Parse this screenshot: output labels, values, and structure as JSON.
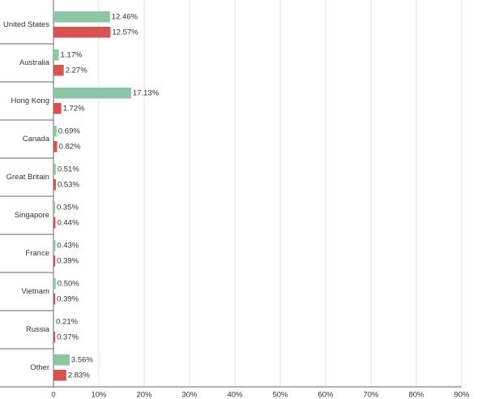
{
  "chart_data": {
    "type": "hbar",
    "categories": [
      "United States",
      "Australia",
      "Hong Kong",
      "Canada",
      "Great Britain",
      "Singapore",
      "France",
      "Vietnam",
      "Russia",
      "Other"
    ],
    "series": [
      {
        "color": "#8dc6a3",
        "values": [
          12.46,
          1.17,
          17.13,
          0.69,
          0.51,
          0.35,
          0.43,
          0.5,
          0.21,
          3.56
        ],
        "value_labels": [
          "12.46%",
          "1.17%",
          "17.13%",
          "0.69%",
          "0.51%",
          "0.35%",
          "0.43%",
          "0.50%",
          "0.21%",
          "3.56%"
        ]
      },
      {
        "color": "#d55452",
        "values": [
          12.57,
          2.27,
          1.72,
          0.82,
          0.53,
          0.44,
          0.39,
          0.39,
          0.37,
          2.83
        ],
        "value_labels": [
          "12.57%",
          "2.27%",
          "1.72%",
          "0.82%",
          "0.53%",
          "0.44%",
          "0.39%",
          "0.39%",
          "0.37%",
          "2.83%"
        ]
      }
    ],
    "xlim": [
      0,
      90
    ],
    "xticks": [
      0,
      {
        "value": 10,
        "label": "10%"
      },
      {
        "value": 20,
        "label": "20%"
      },
      {
        "value": 30,
        "label": "30%"
      },
      {
        "value": 40,
        "label": "40%"
      },
      {
        "value": 50,
        "label": "50%"
      },
      {
        "value": 60,
        "label": "60%"
      },
      {
        "value": 70,
        "label": "70%"
      },
      {
        "value": 80,
        "label": "80%"
      },
      {
        "value": 90,
        "label": "90%"
      }
    ],
    "grid": true
  }
}
